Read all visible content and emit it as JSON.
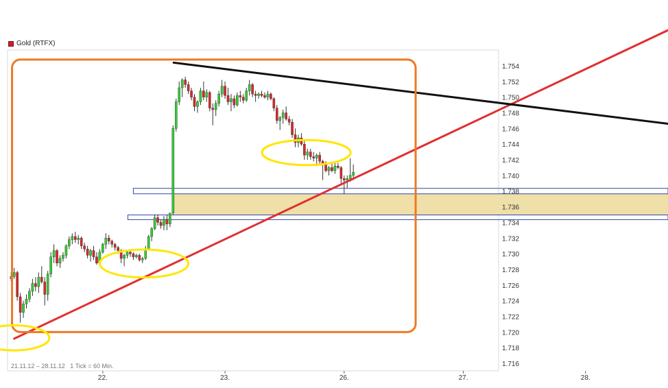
{
  "legend": {
    "label": "Gold (RTFX)",
    "color": "#c8202a"
  },
  "footer": {
    "range": "21.11.12 – 28.11.12",
    "tick": "1 Tick = 60 Min."
  },
  "colors": {
    "up": "#33cc33",
    "down": "#d62828",
    "trend": "#e03030",
    "resistance": "#111111",
    "frame": "#f07820",
    "highlight": "#ffe600",
    "zone": "#efdfa8",
    "zone_border": "#3344aa"
  },
  "chart_data": {
    "type": "candlestick",
    "title": "",
    "ylim": [
      1.715,
      1.7555
    ],
    "yticks": [
      "1.754",
      "1.752",
      "1.750",
      "1.748",
      "1.746",
      "1.744",
      "1.742",
      "1.740",
      "1.738",
      "1.736",
      "1.734",
      "1.732",
      "1.730",
      "1.728",
      "1.726",
      "1.724",
      "1.722",
      "1.720",
      "1.718",
      "1.716"
    ],
    "xlabels": [
      {
        "label": "22.",
        "x": 30
      },
      {
        "label": "23.",
        "x": 70
      },
      {
        "label": "26.",
        "x": 109
      },
      {
        "label": "27.",
        "x": 148
      },
      {
        "label": "28.",
        "x": 188
      }
    ],
    "xlim": [
      -0.5,
      215
    ],
    "candles": [
      [
        1.7268,
        1.7276,
        1.7265,
        1.7271
      ],
      [
        1.7271,
        1.7282,
        1.7268,
        1.7276
      ],
      [
        1.7276,
        1.7278,
        1.724,
        1.7245
      ],
      [
        1.7245,
        1.725,
        1.7212,
        1.7225
      ],
      [
        1.7225,
        1.724,
        1.7218,
        1.7236
      ],
      [
        1.7236,
        1.7248,
        1.723,
        1.7242
      ],
      [
        1.7242,
        1.7256,
        1.7238,
        1.7252
      ],
      [
        1.7252,
        1.7268,
        1.7246,
        1.7262
      ],
      [
        1.7262,
        1.727,
        1.7252,
        1.7258
      ],
      [
        1.7258,
        1.7276,
        1.725,
        1.727
      ],
      [
        1.727,
        1.7284,
        1.7262,
        1.7264
      ],
      [
        1.7264,
        1.727,
        1.7234,
        1.7248
      ],
      [
        1.7248,
        1.7278,
        1.724,
        1.7274
      ],
      [
        1.7274,
        1.7302,
        1.727,
        1.7296
      ],
      [
        1.7296,
        1.7312,
        1.7288,
        1.7304
      ],
      [
        1.7304,
        1.7306,
        1.7284,
        1.7288
      ],
      [
        1.7288,
        1.7298,
        1.7282,
        1.7294
      ],
      [
        1.7294,
        1.7302,
        1.729,
        1.7298
      ],
      [
        1.7298,
        1.7312,
        1.7294,
        1.731
      ],
      [
        1.731,
        1.7322,
        1.7306,
        1.7318
      ],
      [
        1.7318,
        1.7326,
        1.7312,
        1.7322
      ],
      [
        1.7322,
        1.7328,
        1.7314,
        1.7318
      ],
      [
        1.7318,
        1.7324,
        1.7312,
        1.732
      ],
      [
        1.732,
        1.7322,
        1.7306,
        1.731
      ],
      [
        1.731,
        1.7314,
        1.7302,
        1.7306
      ],
      [
        1.7306,
        1.731,
        1.7294,
        1.7298
      ],
      [
        1.7298,
        1.7306,
        1.729,
        1.7304
      ],
      [
        1.7304,
        1.731,
        1.7292,
        1.7296
      ],
      [
        1.7296,
        1.7302,
        1.7286,
        1.7288
      ],
      [
        1.7288,
        1.7306,
        1.7284,
        1.7302
      ],
      [
        1.7302,
        1.7314,
        1.73,
        1.7312
      ],
      [
        1.7312,
        1.7326,
        1.7306,
        1.732
      ],
      [
        1.732,
        1.7324,
        1.7312,
        1.7316
      ],
      [
        1.7316,
        1.7318,
        1.7308,
        1.7312
      ],
      [
        1.7312,
        1.7314,
        1.7304,
        1.7308
      ],
      [
        1.7308,
        1.731,
        1.73,
        1.7304
      ],
      [
        1.7304,
        1.7306,
        1.7288,
        1.7294
      ],
      [
        1.7294,
        1.73,
        1.7284,
        1.7298
      ],
      [
        1.7298,
        1.7304,
        1.7294,
        1.7302
      ],
      [
        1.7302,
        1.7304,
        1.7296,
        1.73
      ],
      [
        1.73,
        1.7302,
        1.7292,
        1.7296
      ],
      [
        1.7296,
        1.73,
        1.7294,
        1.7298
      ],
      [
        1.7298,
        1.73,
        1.729,
        1.7292
      ],
      [
        1.7292,
        1.7296,
        1.7288,
        1.7294
      ],
      [
        1.7294,
        1.731,
        1.7292,
        1.7306
      ],
      [
        1.7306,
        1.7324,
        1.7304,
        1.7322
      ],
      [
        1.7322,
        1.7334,
        1.7316,
        1.7332
      ],
      [
        1.7332,
        1.735,
        1.733,
        1.7346
      ],
      [
        1.7346,
        1.735,
        1.7336,
        1.734
      ],
      [
        1.734,
        1.7344,
        1.7332,
        1.7336
      ],
      [
        1.7336,
        1.7348,
        1.733,
        1.7344
      ],
      [
        1.7344,
        1.735,
        1.733,
        1.7338
      ],
      [
        1.7338,
        1.7352,
        1.7334,
        1.7352
      ],
      [
        1.7352,
        1.7464,
        1.735,
        1.746
      ],
      [
        1.746,
        1.7498,
        1.7456,
        1.7494
      ],
      [
        1.7494,
        1.752,
        1.749,
        1.7512
      ],
      [
        1.7512,
        1.7524,
        1.75,
        1.7522
      ],
      [
        1.7522,
        1.7526,
        1.7512,
        1.7516
      ],
      [
        1.7516,
        1.752,
        1.7504,
        1.7508
      ],
      [
        1.7508,
        1.7512,
        1.7496,
        1.75
      ],
      [
        1.75,
        1.7504,
        1.7482,
        1.7488
      ],
      [
        1.7488,
        1.7496,
        1.748,
        1.7494
      ],
      [
        1.7494,
        1.7512,
        1.749,
        1.7508
      ],
      [
        1.7508,
        1.752,
        1.7496,
        1.75
      ],
      [
        1.75,
        1.751,
        1.7494,
        1.7506
      ],
      [
        1.7506,
        1.7508,
        1.7482,
        1.7486
      ],
      [
        1.7486,
        1.7492,
        1.7464,
        1.7484
      ],
      [
        1.7484,
        1.7496,
        1.7476,
        1.7492
      ],
      [
        1.7492,
        1.7508,
        1.7488,
        1.7504
      ],
      [
        1.7504,
        1.7522,
        1.75,
        1.7514
      ],
      [
        1.7514,
        1.752,
        1.7498,
        1.7502
      ],
      [
        1.7502,
        1.7512,
        1.749,
        1.7494
      ],
      [
        1.7494,
        1.7504,
        1.7482,
        1.7498
      ],
      [
        1.7498,
        1.7502,
        1.7486,
        1.749
      ],
      [
        1.749,
        1.7506,
        1.7488,
        1.7502
      ],
      [
        1.7502,
        1.7508,
        1.7494,
        1.75
      ],
      [
        1.75,
        1.7504,
        1.7492,
        1.7496
      ],
      [
        1.7496,
        1.7512,
        1.7494,
        1.7508
      ],
      [
        1.7508,
        1.7522,
        1.7502,
        1.7516
      ],
      [
        1.7516,
        1.7518,
        1.75,
        1.7504
      ],
      [
        1.7504,
        1.7508,
        1.7494,
        1.7502
      ],
      [
        1.7502,
        1.7506,
        1.7498,
        1.7504
      ],
      [
        1.7504,
        1.7508,
        1.75,
        1.7502
      ],
      [
        1.7502,
        1.7506,
        1.7498,
        1.75
      ],
      [
        1.75,
        1.7508,
        1.7496,
        1.7504
      ],
      [
        1.7504,
        1.7506,
        1.7496,
        1.7498
      ],
      [
        1.7498,
        1.75,
        1.7482,
        1.7486
      ],
      [
        1.7486,
        1.749,
        1.7466,
        1.747
      ],
      [
        1.747,
        1.7476,
        1.7458,
        1.7474
      ],
      [
        1.7474,
        1.7484,
        1.7466,
        1.748
      ],
      [
        1.748,
        1.7488,
        1.747,
        1.7472
      ],
      [
        1.7472,
        1.7476,
        1.7464,
        1.7468
      ],
      [
        1.7468,
        1.7472,
        1.7448,
        1.7452
      ],
      [
        1.7452,
        1.746,
        1.7436,
        1.7442
      ],
      [
        1.7442,
        1.7452,
        1.7436,
        1.7448
      ],
      [
        1.7448,
        1.7454,
        1.7438,
        1.744
      ],
      [
        1.744,
        1.7446,
        1.742,
        1.7426
      ],
      [
        1.7426,
        1.7434,
        1.742,
        1.743
      ],
      [
        1.743,
        1.7434,
        1.742,
        1.7424
      ],
      [
        1.7424,
        1.743,
        1.7418,
        1.7422
      ],
      [
        1.7422,
        1.7428,
        1.7412,
        1.7426
      ],
      [
        1.7426,
        1.743,
        1.7414,
        1.7418
      ],
      [
        1.7418,
        1.742,
        1.7394,
        1.7414
      ],
      [
        1.7414,
        1.7418,
        1.7404,
        1.7406
      ],
      [
        1.7406,
        1.7412,
        1.74,
        1.741
      ],
      [
        1.741,
        1.7416,
        1.7404,
        1.7406
      ],
      [
        1.7406,
        1.7418,
        1.7402,
        1.7412
      ],
      [
        1.7412,
        1.7416,
        1.7408,
        1.741
      ],
      [
        1.741,
        1.7412,
        1.739,
        1.7396
      ],
      [
        1.7396,
        1.74,
        1.7376,
        1.7394
      ],
      [
        1.7394,
        1.74,
        1.7384,
        1.7396
      ],
      [
        1.7396,
        1.7422,
        1.7392,
        1.74
      ],
      [
        1.74,
        1.7414,
        1.7394,
        1.7404
      ]
    ],
    "trendlines": [
      {
        "name": "support",
        "color_key": "trend",
        "from": [
          1.0,
          1.71915
        ],
        "to": [
          215,
          1.75855
        ]
      },
      {
        "name": "resistance",
        "color_key": "resistance",
        "from": [
          53.2,
          1.7544
        ],
        "to": [
          215,
          1.7466
        ]
      }
    ],
    "zones": [
      {
        "upper": 1.73765,
        "lower": 1.73495,
        "x_start": 52.8,
        "fill": true
      },
      {
        "upper": 1.73835,
        "lower": 1.73765,
        "x_start": 40.0,
        "fill": false
      },
      {
        "upper": 1.73495,
        "lower": 1.73435,
        "x_start": 38.2,
        "fill": false
      }
    ],
    "frame": {
      "x_start": 0.3,
      "x_end": 132.4,
      "upper": 1.7548,
      "lower": 1.72
    },
    "highlights": [
      {
        "x": 1.0,
        "y": 1.71925,
        "rx": 11.5,
        "ry": 0.0016
      },
      {
        "x": 43.5,
        "y": 1.72875,
        "rx": 14.5,
        "ry": 0.00178
      },
      {
        "x": 96.6,
        "y": 1.74292,
        "rx": 14.5,
        "ry": 0.0016
      }
    ]
  }
}
